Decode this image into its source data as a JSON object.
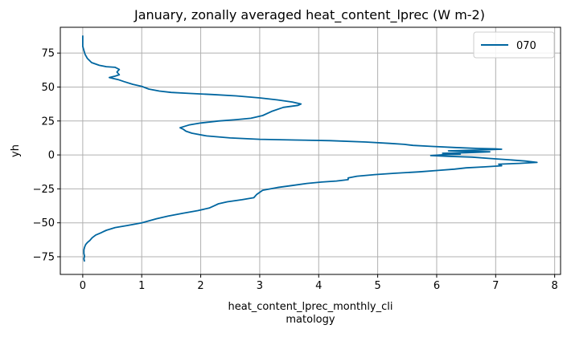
{
  "chart_data": {
    "type": "line",
    "title": "January, zonally averaged heat_content_lprec (W m-2)",
    "xlabel_lines": [
      "heat_content_lprec_monthly_cli",
      "matology"
    ],
    "ylabel": "yh",
    "xlim": [
      -0.38,
      8.1
    ],
    "ylim": [
      -88,
      94
    ],
    "x_ticks": [
      0,
      1,
      2,
      3,
      4,
      5,
      6,
      7,
      8
    ],
    "x_tick_labels": [
      "0",
      "1",
      "2",
      "3",
      "4",
      "5",
      "6",
      "7",
      "8"
    ],
    "y_ticks": [
      -75,
      -50,
      -25,
      0,
      25,
      50,
      75
    ],
    "y_tick_labels": [
      "−75",
      "−50",
      "−25",
      "0",
      "25",
      "50",
      "75"
    ],
    "grid": true,
    "legend_position": "top-right",
    "series": [
      {
        "name": "070",
        "color": "#0066a0",
        "points": [
          [
            0.0,
            88.0
          ],
          [
            0.0,
            84.0
          ],
          [
            0.0,
            80.0
          ],
          [
            0.02,
            77.0
          ],
          [
            0.04,
            74.0
          ],
          [
            0.08,
            71.0
          ],
          [
            0.15,
            68.0
          ],
          [
            0.28,
            66.0
          ],
          [
            0.4,
            65.0
          ],
          [
            0.55,
            64.5
          ],
          [
            0.62,
            63.0
          ],
          [
            0.58,
            61.0
          ],
          [
            0.62,
            59.0
          ],
          [
            0.55,
            58.0
          ],
          [
            0.45,
            57.0
          ],
          [
            0.6,
            55.5
          ],
          [
            0.7,
            54.0
          ],
          [
            0.85,
            52.0
          ],
          [
            1.0,
            50.5
          ],
          [
            1.12,
            48.5
          ],
          [
            1.3,
            47.0
          ],
          [
            1.5,
            46.0
          ],
          [
            1.8,
            45.3
          ],
          [
            2.2,
            44.5
          ],
          [
            2.6,
            43.5
          ],
          [
            3.0,
            42.0
          ],
          [
            3.3,
            40.5
          ],
          [
            3.55,
            39.0
          ],
          [
            3.7,
            37.5
          ],
          [
            3.65,
            36.5
          ],
          [
            3.4,
            35.0
          ],
          [
            3.2,
            32.0
          ],
          [
            3.05,
            29.0
          ],
          [
            2.85,
            27.0
          ],
          [
            2.6,
            26.0
          ],
          [
            2.3,
            25.0
          ],
          [
            2.0,
            23.5
          ],
          [
            1.8,
            22.0
          ],
          [
            1.65,
            20.0
          ],
          [
            1.7,
            19.0
          ],
          [
            1.75,
            17.5
          ],
          [
            1.85,
            16.0
          ],
          [
            2.1,
            14.0
          ],
          [
            2.5,
            12.5
          ],
          [
            3.0,
            11.5
          ],
          [
            3.6,
            11.0
          ],
          [
            4.2,
            10.5
          ],
          [
            4.8,
            9.5
          ],
          [
            5.2,
            8.5
          ],
          [
            5.45,
            7.8
          ],
          [
            5.6,
            7.0
          ],
          [
            5.9,
            6.3
          ],
          [
            6.3,
            5.5
          ],
          [
            6.7,
            4.8
          ],
          [
            7.0,
            4.5
          ],
          [
            7.1,
            4.2
          ],
          [
            6.7,
            3.6
          ],
          [
            6.2,
            3.0
          ],
          [
            6.5,
            2.6
          ],
          [
            6.9,
            2.3
          ],
          [
            6.5,
            1.6
          ],
          [
            6.1,
            1.2
          ],
          [
            6.4,
            0.6
          ],
          [
            6.1,
            0.1
          ],
          [
            5.9,
            -0.5
          ],
          [
            6.2,
            -1.0
          ],
          [
            6.6,
            -1.6
          ],
          [
            6.9,
            -2.6
          ],
          [
            7.2,
            -3.5
          ],
          [
            7.5,
            -4.5
          ],
          [
            7.7,
            -5.5
          ],
          [
            7.4,
            -6.2
          ],
          [
            7.05,
            -6.8
          ],
          [
            7.1,
            -8.0
          ],
          [
            6.8,
            -8.8
          ],
          [
            6.5,
            -9.5
          ],
          [
            6.3,
            -10.5
          ],
          [
            6.0,
            -11.5
          ],
          [
            5.7,
            -12.5
          ],
          [
            5.3,
            -13.5
          ],
          [
            4.95,
            -14.5
          ],
          [
            4.65,
            -15.7
          ],
          [
            4.5,
            -17.0
          ],
          [
            4.5,
            -18.2
          ],
          [
            4.3,
            -19.2
          ],
          [
            4.05,
            -20.0
          ],
          [
            3.8,
            -21.0
          ],
          [
            3.55,
            -22.5
          ],
          [
            3.3,
            -24.0
          ],
          [
            3.05,
            -26.0
          ],
          [
            2.95,
            -29.0
          ],
          [
            2.9,
            -31.5
          ],
          [
            2.7,
            -33.0
          ],
          [
            2.45,
            -34.5
          ],
          [
            2.3,
            -36.0
          ],
          [
            2.2,
            -38.0
          ],
          [
            2.15,
            -39.0
          ],
          [
            1.95,
            -41.0
          ],
          [
            1.7,
            -43.0
          ],
          [
            1.45,
            -45.0
          ],
          [
            1.25,
            -47.0
          ],
          [
            1.0,
            -50.0
          ],
          [
            0.75,
            -52.0
          ],
          [
            0.55,
            -53.5
          ],
          [
            0.4,
            -55.5
          ],
          [
            0.3,
            -57.5
          ],
          [
            0.22,
            -59.0
          ],
          [
            0.16,
            -61.0
          ],
          [
            0.12,
            -63.0
          ],
          [
            0.08,
            -64.5
          ],
          [
            0.05,
            -66.0
          ],
          [
            0.03,
            -68.0
          ],
          [
            0.02,
            -70.0
          ],
          [
            0.02,
            -72.5
          ],
          [
            0.03,
            -74.5
          ],
          [
            0.02,
            -76.5
          ],
          [
            0.03,
            -78.5
          ]
        ]
      }
    ]
  }
}
